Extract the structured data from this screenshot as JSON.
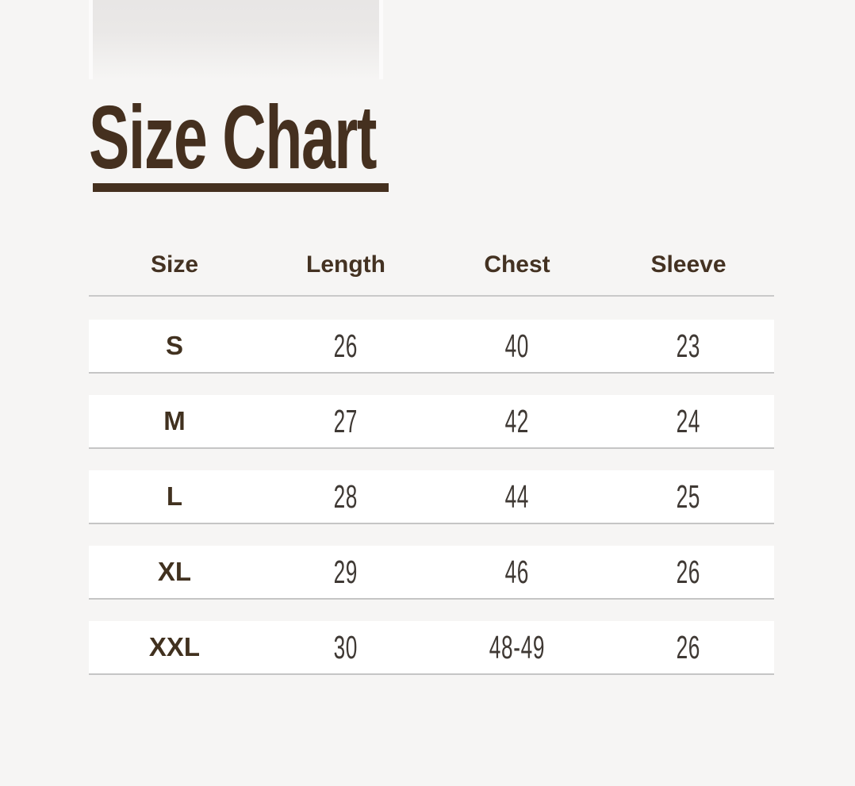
{
  "page": {
    "background_color": "#f6f5f4",
    "accent_color": "#45301f",
    "row_background_color": "#ffffff",
    "divider_color": "#c9c9c9"
  },
  "title": {
    "text": "Size Chart"
  },
  "table": {
    "headers": [
      "Size",
      "Length",
      "Chest",
      "Sleeve"
    ],
    "rows": [
      {
        "size": "S",
        "length": "26",
        "chest": "40",
        "sleeve": "23"
      },
      {
        "size": "M",
        "length": "27",
        "chest": "42",
        "sleeve": "24"
      },
      {
        "size": "L",
        "length": "28",
        "chest": "44",
        "sleeve": "25"
      },
      {
        "size": "XL",
        "length": "29",
        "chest": "46",
        "sleeve": "26"
      },
      {
        "size": "XXL",
        "length": "30",
        "chest": "48-49",
        "sleeve": "26"
      }
    ]
  }
}
